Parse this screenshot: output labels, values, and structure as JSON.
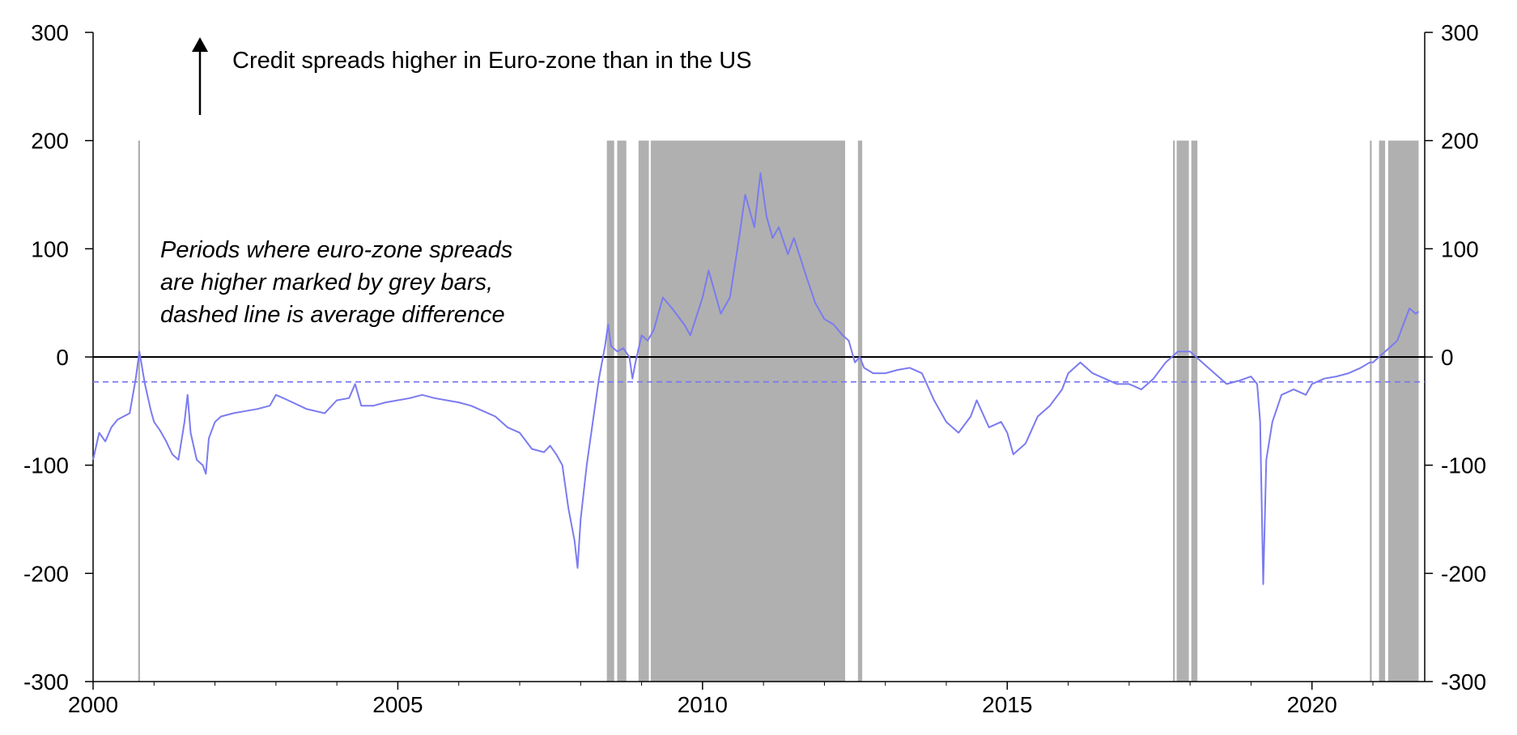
{
  "chart_data": {
    "type": "line",
    "title": "",
    "xlabel": "",
    "ylabel": "",
    "xlim": [
      2000,
      2021.85
    ],
    "ylim": [
      -300,
      300
    ],
    "x_ticks": [
      "2000",
      "2005",
      "2010",
      "2015",
      "2020"
    ],
    "y_ticks_left": [
      "300",
      "200",
      "100",
      "0",
      "-100",
      "-200",
      "-300"
    ],
    "y_ticks_right": [
      "300",
      "200",
      "100",
      "0",
      "-100",
      "-200",
      "-300"
    ],
    "grid": false,
    "legend": "none",
    "annotations": {
      "arrow_text": "Credit spreads higher in Euro-zone than in the US",
      "note_lines": [
        "Periods where euro-zone spreads",
        "are higher marked by grey bars,",
        "dashed line is average difference"
      ]
    },
    "average_difference": -23,
    "shaded_periods_value": 200,
    "shaded_periods": [
      [
        2000.74,
        2000.77
      ],
      [
        2008.43,
        2008.55
      ],
      [
        2008.6,
        2008.75
      ],
      [
        2008.95,
        2009.12
      ],
      [
        2009.15,
        2012.34
      ],
      [
        2012.55,
        2012.62
      ],
      [
        2017.72,
        2017.75
      ],
      [
        2017.78,
        2017.98
      ],
      [
        2018.02,
        2018.12
      ],
      [
        2020.95,
        2020.98
      ],
      [
        2021.1,
        2021.2
      ],
      [
        2021.25,
        2021.75
      ]
    ],
    "series": [
      {
        "x": [
          2000.0,
          2000.1,
          2000.2,
          2000.3,
          2000.4,
          2000.5,
          2000.6,
          2000.7,
          2000.76,
          2000.85,
          2000.95,
          2001.0,
          2001.1,
          2001.2,
          2001.3,
          2001.4,
          2001.5,
          2001.55,
          2001.6,
          2001.7,
          2001.8,
          2001.85,
          2001.9,
          2002.0,
          2002.1,
          2002.3,
          2002.5,
          2002.7,
          2002.9,
          2003.0,
          2003.2,
          2003.5,
          2003.8,
          2004.0,
          2004.2,
          2004.3,
          2004.4,
          2004.6,
          2004.8,
          2005.0,
          2005.2,
          2005.4,
          2005.6,
          2005.8,
          2006.0,
          2006.2,
          2006.4,
          2006.6,
          2006.8,
          2007.0,
          2007.2,
          2007.4,
          2007.5,
          2007.6,
          2007.7,
          2007.8,
          2007.9,
          2007.95,
          2008.0,
          2008.1,
          2008.2,
          2008.3,
          2008.4,
          2008.45,
          2008.5,
          2008.6,
          2008.7,
          2008.8,
          2008.85,
          2008.9,
          2009.0,
          2009.1,
          2009.2,
          2009.35,
          2009.5,
          2009.7,
          2009.8,
          2010.0,
          2010.1,
          2010.3,
          2010.45,
          2010.6,
          2010.7,
          2010.85,
          2010.95,
          2011.05,
          2011.15,
          2011.25,
          2011.4,
          2011.5,
          2011.7,
          2011.85,
          2012.0,
          2012.15,
          2012.3,
          2012.4,
          2012.5,
          2012.58,
          2012.65,
          2012.8,
          2013.0,
          2013.2,
          2013.4,
          2013.6,
          2013.8,
          2014.0,
          2014.2,
          2014.4,
          2014.5,
          2014.7,
          2014.9,
          2015.0,
          2015.1,
          2015.3,
          2015.5,
          2015.7,
          2015.9,
          2016.0,
          2016.2,
          2016.4,
          2016.6,
          2016.8,
          2017.0,
          2017.2,
          2017.4,
          2017.6,
          2017.8,
          2018.0,
          2018.2,
          2018.4,
          2018.6,
          2018.8,
          2019.0,
          2019.1,
          2019.15,
          2019.2,
          2019.25,
          2019.35,
          2019.5,
          2019.7,
          2019.9,
          2020.0,
          2020.2,
          2020.4,
          2020.6,
          2020.8,
          2020.95,
          2021.0,
          2021.1,
          2021.2,
          2021.3,
          2021.4,
          2021.5,
          2021.6,
          2021.7,
          2021.75
        ],
        "values": [
          -95,
          -70,
          -78,
          -65,
          -58,
          -55,
          -52,
          -20,
          5,
          -25,
          -50,
          -60,
          -68,
          -78,
          -90,
          -95,
          -60,
          -35,
          -70,
          -95,
          -100,
          -108,
          -75,
          -60,
          -55,
          -52,
          -50,
          -48,
          -45,
          -35,
          -40,
          -48,
          -52,
          -40,
          -38,
          -25,
          -45,
          -45,
          -42,
          -40,
          -38,
          -35,
          -38,
          -40,
          -42,
          -45,
          -50,
          -55,
          -65,
          -70,
          -85,
          -88,
          -82,
          -90,
          -100,
          -140,
          -170,
          -195,
          -150,
          -100,
          -60,
          -20,
          10,
          30,
          10,
          5,
          8,
          0,
          -20,
          -5,
          20,
          15,
          25,
          55,
          45,
          30,
          20,
          55,
          80,
          40,
          55,
          110,
          150,
          120,
          170,
          130,
          110,
          120,
          95,
          110,
          75,
          50,
          35,
          30,
          20,
          15,
          -5,
          0,
          -10,
          -15,
          -15,
          -12,
          -10,
          -15,
          -40,
          -60,
          -70,
          -55,
          -40,
          -65,
          -60,
          -70,
          -90,
          -80,
          -55,
          -45,
          -30,
          -15,
          -5,
          -15,
          -20,
          -25,
          -25,
          -30,
          -20,
          -5,
          5,
          5,
          -5,
          -15,
          -25,
          -22,
          -18,
          -25,
          -60,
          -210,
          -95,
          -60,
          -35,
          -30,
          -35,
          -25,
          -20,
          -18,
          -15,
          -10,
          -5,
          -5,
          0,
          5,
          10,
          15,
          30,
          45,
          40,
          42
        ]
      }
    ]
  }
}
